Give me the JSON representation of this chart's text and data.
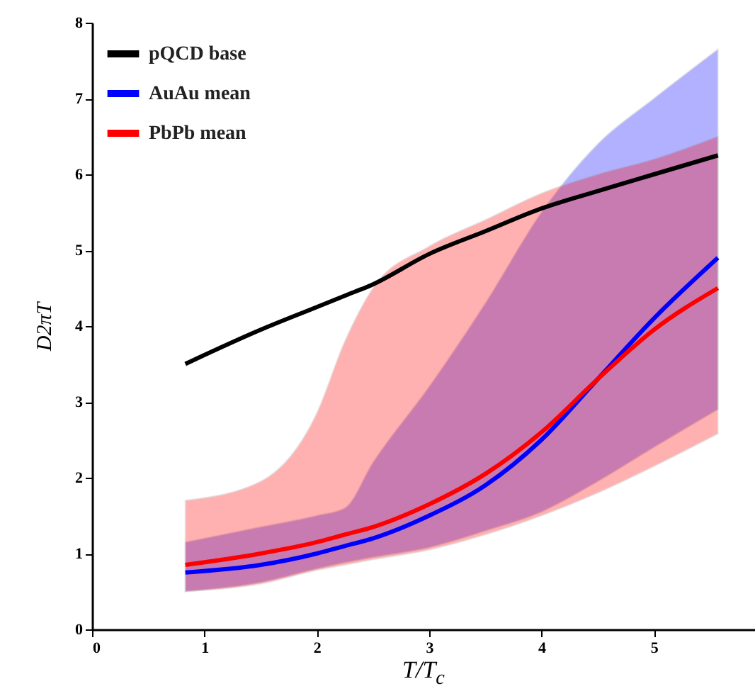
{
  "chart_data": {
    "type": "line",
    "xlabel": "T/T$_{c}$",
    "ylabel": "D2πT",
    "x": [
      0.83,
      1.5,
      2,
      2.25,
      2.5,
      3,
      3.5,
      4,
      4.5,
      5,
      5.57
    ],
    "xlim": [
      0,
      5.9
    ],
    "xticks": [
      0,
      1,
      2,
      3,
      4,
      5
    ],
    "ylim": [
      0,
      8
    ],
    "yticks": [
      0,
      1,
      2,
      3,
      4,
      5,
      6,
      7,
      8
    ],
    "legend": "top left",
    "grid": false,
    "series": [
      {
        "name": "pQCD base",
        "color": "#000000",
        "values": [
          3.5,
          3.95,
          4.25,
          4.4,
          4.55,
          4.95,
          5.25,
          5.55,
          5.78,
          6.0,
          6.25
        ]
      },
      {
        "name": "AuAu mean",
        "color": "#0000ff",
        "values": [
          0.75,
          0.85,
          1.0,
          1.1,
          1.2,
          1.5,
          1.9,
          2.5,
          3.3,
          4.1,
          4.9
        ],
        "lower": [
          0.5,
          0.62,
          0.8,
          0.88,
          0.95,
          1.08,
          1.3,
          1.55,
          1.95,
          2.4,
          2.9
        ],
        "upper": [
          1.15,
          1.35,
          1.5,
          1.6,
          2.2,
          3.2,
          4.3,
          5.5,
          6.4,
          7.0,
          7.65
        ]
      },
      {
        "name": "PbPb mean",
        "color": "#ff0000",
        "values": [
          0.85,
          1.0,
          1.15,
          1.25,
          1.35,
          1.65,
          2.05,
          2.6,
          3.3,
          3.95,
          4.5
        ],
        "lower": [
          0.5,
          0.6,
          0.78,
          0.85,
          0.92,
          1.05,
          1.25,
          1.5,
          1.8,
          2.15,
          2.58
        ],
        "upper": [
          1.7,
          1.95,
          2.85,
          3.8,
          4.5,
          5.05,
          5.4,
          5.75,
          6.0,
          6.2,
          6.5
        ]
      }
    ]
  }
}
